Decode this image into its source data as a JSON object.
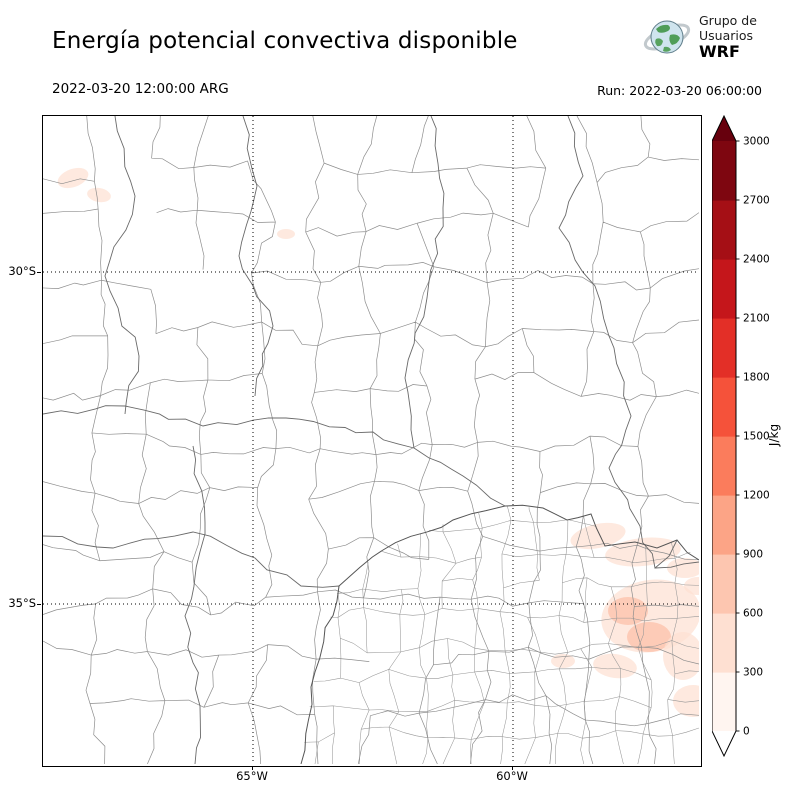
{
  "header": {
    "title": "Energía potencial convectiva disponible",
    "valid_time": "2022-03-20 12:00:00 ARG",
    "run_label": "Run: 2022-03-20 06:00:00",
    "logo": {
      "line1": "Grupo de",
      "line2": "Usuarios",
      "line3": "WRF"
    }
  },
  "map": {
    "lat_labels": [
      "30°S",
      "35°S"
    ],
    "lon_labels": [
      "65°W",
      "60°W"
    ]
  },
  "colorbar": {
    "unit": "J/kg",
    "ticks": [
      0,
      300,
      600,
      900,
      1200,
      1500,
      1800,
      2100,
      2400,
      2700,
      3000
    ],
    "band_colors": [
      "#fff5f0",
      "#fee0d2",
      "#fdc6b0",
      "#fca486",
      "#fb7c5c",
      "#f5523a",
      "#e32f27",
      "#c5161b",
      "#a50f15",
      "#7e0610"
    ],
    "over_color": "#67000d",
    "under_color": "#ffffff"
  },
  "chart_data": {
    "type": "heatmap",
    "title": "Energía potencial convectiva disponible",
    "variable": "CAPE",
    "unit": "J/kg",
    "valid_time": "2022-03-20 12:00:00 ARG",
    "run_time": "2022-03-20 06:00:00",
    "levels": [
      0,
      300,
      600,
      900,
      1200,
      1500,
      1800,
      2100,
      2400,
      2700,
      3000
    ],
    "colormap": "Reds",
    "x_ticks": [
      "65°W",
      "60°W"
    ],
    "y_ticks": [
      "30°S",
      "35°S"
    ],
    "legend_position": "right",
    "grid": "dotted lat/lon lines",
    "field_summary": "Field mostly near 0 J/kg (white); small patches of roughly 300–900 J/kg over the northwest of the domain and near the Buenos Aires coast / Río de la Plata"
  }
}
